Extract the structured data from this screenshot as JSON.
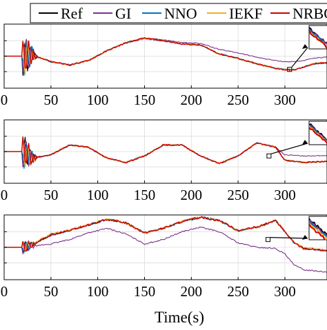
{
  "legend": {
    "entries": [
      {
        "label": "Ref",
        "color": "#000000"
      },
      {
        "label": "GI",
        "color": "#7E2F8E"
      },
      {
        "label": "NNO",
        "color": "#0072BD"
      },
      {
        "label": "IEKF",
        "color": "#EDB120"
      },
      {
        "label": "NRBO",
        "color": "#D00000"
      }
    ]
  },
  "chart_data": [
    {
      "type": "line",
      "xlabel": "",
      "xlim": [
        0,
        345
      ],
      "xticks": [
        0,
        50,
        100,
        150,
        200,
        250,
        300
      ],
      "xtick_labels": [
        "0",
        "50",
        "100",
        "150",
        "200",
        "250",
        "300"
      ],
      "ylim": [
        -1.45,
        1.45
      ],
      "grid": true,
      "inset": "top-right",
      "series": [
        {
          "color": "#000000",
          "x": [
            0,
            20,
            30,
            50,
            70,
            90,
            110,
            130,
            150,
            170,
            190,
            210,
            230,
            250,
            270,
            290,
            300,
            310,
            320,
            330,
            345
          ],
          "y": [
            0,
            0,
            0.05,
            -0.25,
            -0.4,
            -0.2,
            0.25,
            0.6,
            0.8,
            0.7,
            0.55,
            0.5,
            0.1,
            -0.1,
            -0.35,
            -0.55,
            -0.6,
            -0.62,
            -0.5,
            -0.35,
            -0.3
          ]
        },
        {
          "color": "#7E2F8E",
          "x": [
            0,
            20,
            30,
            50,
            70,
            90,
            110,
            130,
            150,
            170,
            190,
            210,
            230,
            250,
            270,
            290,
            300,
            310,
            320,
            330,
            345
          ],
          "y": [
            0,
            0,
            0.05,
            -0.25,
            -0.4,
            -0.2,
            0.25,
            0.62,
            0.82,
            0.74,
            0.62,
            0.58,
            0.3,
            0.15,
            -0.05,
            -0.2,
            -0.25,
            -0.25,
            -0.2,
            -0.1,
            -0.05
          ]
        },
        {
          "color": "#0072BD",
          "x": [
            0,
            20,
            30,
            50,
            70,
            90,
            110,
            130,
            150,
            170,
            190,
            210,
            230,
            250,
            270,
            290,
            300,
            310,
            320,
            330,
            345
          ],
          "y": [
            0,
            0,
            0.05,
            -0.25,
            -0.4,
            -0.2,
            0.25,
            0.6,
            0.8,
            0.7,
            0.55,
            0.5,
            0.1,
            -0.1,
            -0.35,
            -0.55,
            -0.6,
            -0.62,
            -0.5,
            -0.35,
            -0.3
          ]
        },
        {
          "color": "#EDB120",
          "x": [
            0,
            20,
            30,
            50,
            70,
            90,
            110,
            130,
            150,
            170,
            190,
            210,
            230,
            250,
            270,
            290,
            300,
            310,
            320,
            330,
            345
          ],
          "y": [
            0,
            0,
            0.05,
            -0.25,
            -0.42,
            -0.2,
            0.25,
            0.62,
            0.8,
            0.72,
            0.57,
            0.5,
            0.1,
            -0.1,
            -0.35,
            -0.55,
            -0.6,
            -0.62,
            -0.48,
            -0.33,
            -0.3
          ]
        },
        {
          "color": "#D00000",
          "x": [
            0,
            20,
            30,
            50,
            70,
            90,
            110,
            130,
            150,
            170,
            190,
            210,
            230,
            250,
            270,
            290,
            300,
            310,
            320,
            330,
            345
          ],
          "y": [
            0,
            0,
            0.05,
            -0.25,
            -0.4,
            -0.2,
            0.25,
            0.6,
            0.82,
            0.7,
            0.55,
            0.5,
            0.1,
            -0.1,
            -0.35,
            -0.55,
            -0.62,
            -0.62,
            -0.5,
            -0.35,
            -0.3
          ]
        }
      ]
    },
    {
      "type": "line",
      "xlabel": "",
      "xlim": [
        0,
        345
      ],
      "xticks": [
        0,
        50,
        100,
        150,
        200,
        250,
        300
      ],
      "xtick_labels": [
        "0",
        "50",
        "100",
        "150",
        "200",
        "250",
        "300"
      ],
      "ylim": [
        -1.45,
        1.45
      ],
      "grid": true,
      "inset": "top-right",
      "series": [
        {
          "color": "#000000",
          "x": [
            0,
            20,
            30,
            50,
            70,
            90,
            110,
            130,
            150,
            170,
            190,
            210,
            230,
            250,
            270,
            290,
            300,
            320,
            345
          ],
          "y": [
            0,
            0,
            -0.3,
            -0.15,
            0.3,
            0.2,
            -0.3,
            -0.5,
            -0.2,
            0.3,
            0.3,
            -0.2,
            -0.55,
            -0.2,
            0.4,
            0.2,
            -0.4,
            -0.5,
            -0.45
          ]
        },
        {
          "color": "#7E2F8E",
          "x": [
            0,
            20,
            30,
            50,
            70,
            90,
            110,
            130,
            150,
            170,
            190,
            210,
            230,
            250,
            270,
            290,
            300,
            320,
            345
          ],
          "y": [
            0,
            0,
            -0.3,
            -0.15,
            0.3,
            0.2,
            -0.3,
            -0.5,
            -0.2,
            0.3,
            0.3,
            -0.2,
            -0.55,
            -0.2,
            0.4,
            0.2,
            -0.15,
            -0.2,
            -0.18
          ]
        },
        {
          "color": "#0072BD",
          "x": [
            0,
            20,
            30,
            50,
            70,
            90,
            110,
            130,
            150,
            170,
            190,
            210,
            230,
            250,
            270,
            290,
            300,
            320,
            345
          ],
          "y": [
            0,
            0,
            -0.3,
            -0.15,
            0.3,
            0.2,
            -0.3,
            -0.5,
            -0.2,
            0.3,
            0.3,
            -0.2,
            -0.55,
            -0.2,
            0.4,
            0.2,
            -0.4,
            -0.5,
            -0.45
          ]
        },
        {
          "color": "#EDB120",
          "x": [
            0,
            20,
            30,
            50,
            70,
            90,
            110,
            130,
            150,
            170,
            190,
            210,
            230,
            250,
            270,
            290,
            300,
            320,
            345
          ],
          "y": [
            0,
            0,
            -0.3,
            -0.15,
            0.3,
            0.2,
            -0.3,
            -0.5,
            -0.2,
            0.3,
            0.3,
            -0.2,
            -0.55,
            -0.2,
            0.4,
            0.2,
            -0.4,
            -0.5,
            -0.45
          ]
        },
        {
          "color": "#D00000",
          "x": [
            0,
            20,
            30,
            50,
            70,
            90,
            110,
            130,
            150,
            170,
            190,
            210,
            230,
            250,
            270,
            290,
            300,
            320,
            345
          ],
          "y": [
            0,
            0,
            -0.3,
            -0.15,
            0.3,
            0.2,
            -0.3,
            -0.5,
            -0.2,
            0.3,
            0.3,
            -0.2,
            -0.55,
            -0.2,
            0.4,
            0.2,
            -0.4,
            -0.5,
            -0.45
          ]
        }
      ]
    },
    {
      "type": "line",
      "xlabel": "Time(s)",
      "xlim": [
        0,
        345
      ],
      "xticks": [
        0,
        50,
        100,
        150,
        200,
        250,
        300
      ],
      "xtick_labels": [
        "0",
        "50",
        "100",
        "150",
        "200",
        "250",
        "300"
      ],
      "ylim": [
        -1.45,
        1.45
      ],
      "grid": true,
      "inset": "top-right",
      "series": [
        {
          "color": "#000000",
          "x": [
            0,
            20,
            30,
            50,
            70,
            90,
            110,
            130,
            150,
            170,
            190,
            210,
            230,
            250,
            270,
            290,
            300,
            310,
            320,
            345
          ],
          "y": [
            0,
            0,
            0.1,
            0.55,
            0.75,
            1.0,
            1.25,
            1.1,
            0.65,
            0.85,
            1.15,
            1.35,
            1.2,
            0.75,
            0.9,
            1.2,
            0.7,
            0.2,
            -0.05,
            -0.15
          ]
        },
        {
          "color": "#7E2F8E",
          "x": [
            0,
            20,
            30,
            50,
            70,
            90,
            110,
            130,
            150,
            170,
            190,
            210,
            230,
            250,
            270,
            290,
            300,
            310,
            320,
            345
          ],
          "y": [
            0,
            0,
            0.05,
            0.15,
            0.35,
            0.65,
            0.85,
            0.6,
            0.15,
            0.35,
            0.7,
            0.9,
            0.7,
            0.2,
            0.0,
            -0.05,
            -0.3,
            -0.8,
            -1.0,
            -1.1
          ]
        },
        {
          "color": "#0072BD",
          "x": [
            0,
            20,
            30,
            50,
            70,
            90,
            110,
            130,
            150,
            170,
            190,
            210,
            230,
            250,
            270,
            290,
            300,
            310,
            320,
            345
          ],
          "y": [
            0,
            0,
            0.1,
            0.55,
            0.75,
            1.0,
            1.25,
            1.1,
            0.65,
            0.85,
            1.15,
            1.35,
            1.2,
            0.75,
            0.9,
            1.2,
            0.7,
            0.2,
            -0.05,
            -0.15
          ]
        },
        {
          "color": "#EDB120",
          "x": [
            0,
            20,
            30,
            50,
            70,
            90,
            110,
            130,
            150,
            170,
            190,
            210,
            230,
            250,
            270,
            290,
            300,
            310,
            320,
            345
          ],
          "y": [
            0,
            0,
            0.15,
            0.6,
            0.78,
            1.02,
            1.27,
            1.12,
            0.65,
            0.87,
            1.17,
            1.38,
            1.22,
            0.75,
            0.9,
            1.22,
            0.72,
            0.22,
            0.0,
            -0.12
          ]
        },
        {
          "color": "#D00000",
          "x": [
            0,
            20,
            30,
            50,
            70,
            90,
            110,
            130,
            150,
            170,
            190,
            210,
            230,
            250,
            270,
            290,
            300,
            310,
            320,
            345
          ],
          "y": [
            0,
            0,
            0.1,
            0.55,
            0.75,
            1.0,
            1.25,
            1.1,
            0.65,
            0.85,
            1.15,
            1.35,
            1.2,
            0.75,
            0.9,
            1.2,
            0.7,
            0.2,
            -0.05,
            -0.15
          ]
        }
      ]
    }
  ]
}
